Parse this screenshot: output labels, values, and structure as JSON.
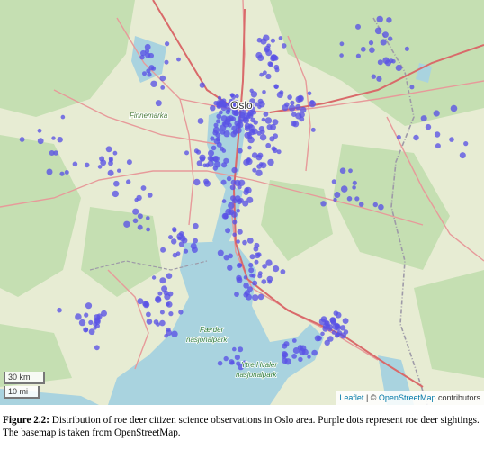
{
  "map": {
    "labels": {
      "city": "Oslo",
      "town": "Finnemarka",
      "park1_line1": "Færder",
      "park1_line2": "nasjonalpark",
      "park2_line1": "Ytre Hvaler",
      "park2_line2": "nasjonalpark"
    },
    "scale_km": "30 km",
    "scale_mi": "10 mi",
    "attribution": {
      "leaflet": "Leaflet",
      "sep": " | © ",
      "osm": "OpenStreetMap",
      "contrib": " contributors"
    },
    "colors": {
      "land": "#e7ecd3",
      "forest": "#c5dfb2",
      "water": "#a9d3df",
      "road": "#e79a9a",
      "boundary": "#9e9aa8",
      "dot": "#5a52e6"
    }
  },
  "caption": {
    "label": "Figure 2.2:",
    "text": " Distribution of roe deer citizen science observations in Oslo area. Purple dots represent roe deer sightings. The basemap is taken from OpenStreetMap."
  }
}
